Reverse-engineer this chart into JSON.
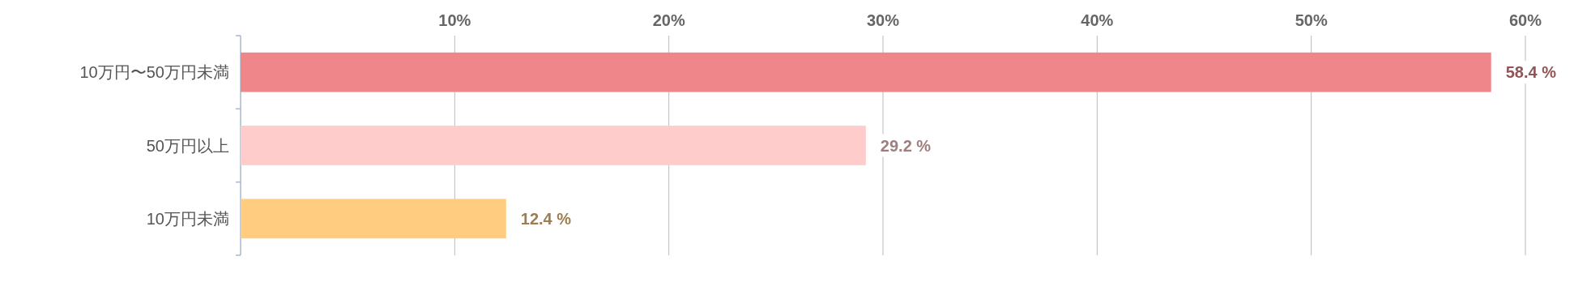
{
  "chart_data": {
    "type": "bar",
    "orientation": "horizontal",
    "categories": [
      "10万円〜50万円未満",
      "50万円以上",
      "10万円未満"
    ],
    "values": [
      58.4,
      29.2,
      12.4
    ],
    "colors": [
      "#ee868a",
      "#ffcccc",
      "#ffcc80"
    ],
    "value_labels": [
      "58.4 %",
      "29.2 %",
      "12.4 %"
    ],
    "xlim": [
      0,
      60
    ],
    "xticks": [
      {
        "value": 10,
        "label": "10%"
      },
      {
        "value": 20,
        "label": "20%"
      },
      {
        "value": 30,
        "label": "30%"
      },
      {
        "value": 40,
        "label": "40%"
      },
      {
        "value": 50,
        "label": "50%"
      },
      {
        "value": 60,
        "label": "60%"
      }
    ],
    "grid": "x"
  }
}
